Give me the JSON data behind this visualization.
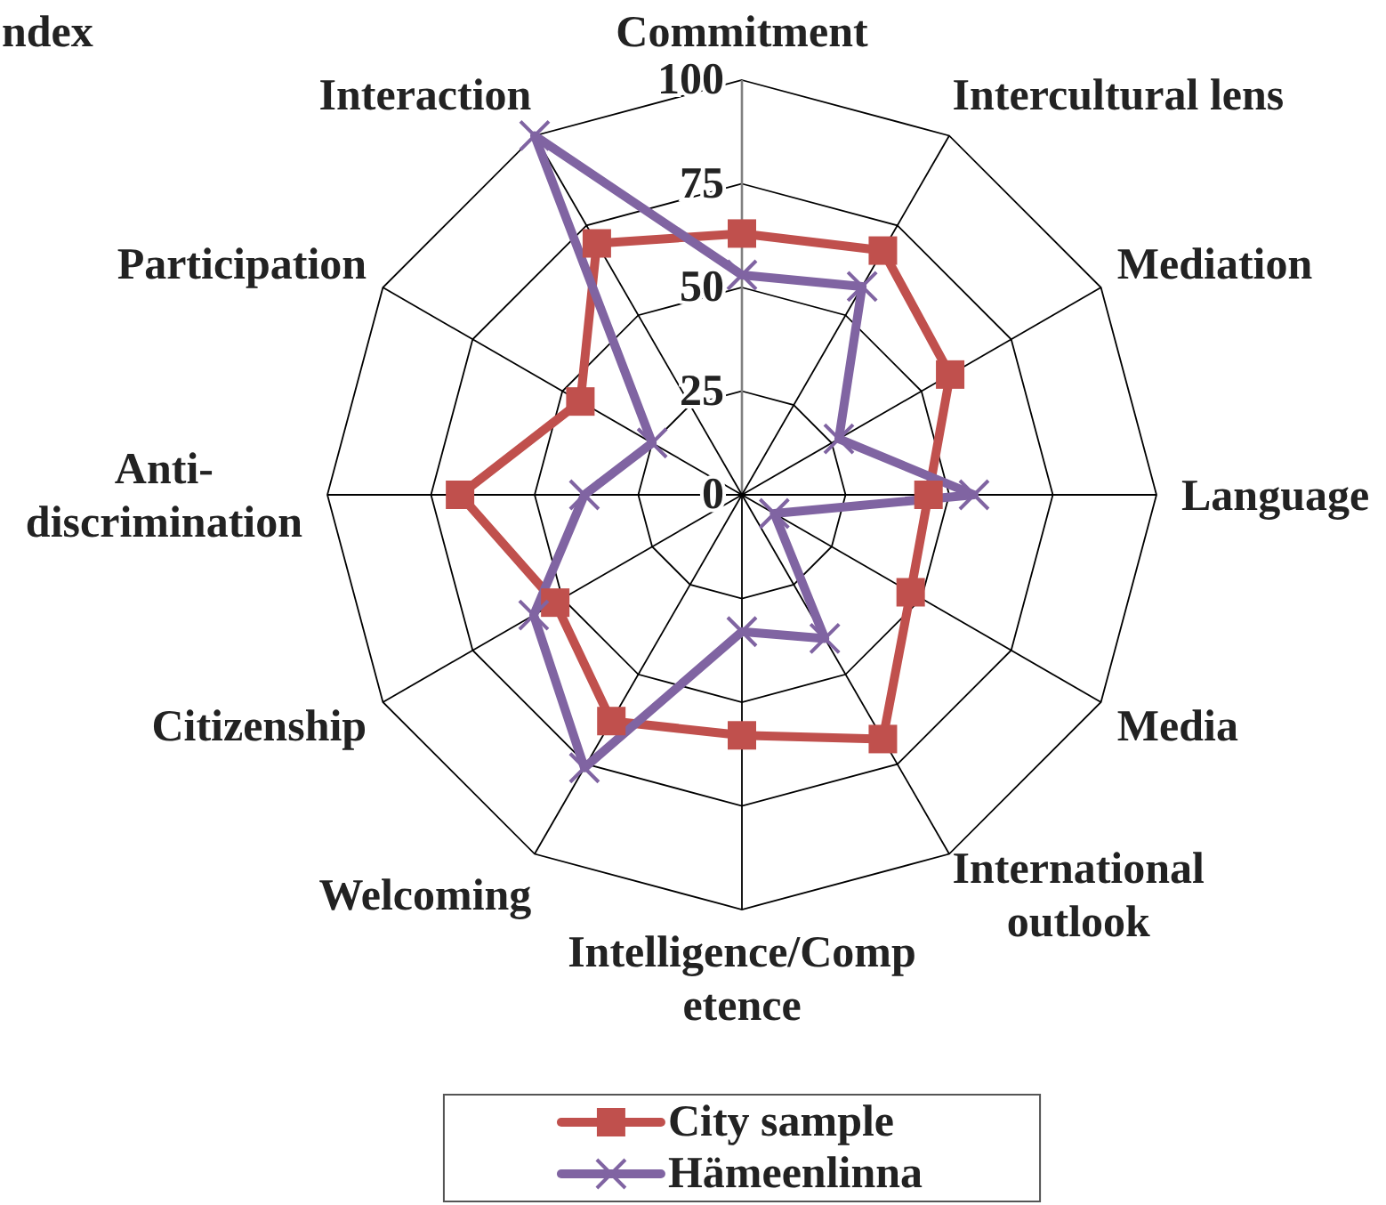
{
  "chart_data": {
    "type": "radar",
    "title": "ndex",
    "categories": [
      "Commitment",
      "Intercultural lens",
      "Mediation",
      "Language",
      "Media",
      "International outlook",
      "Intelligence/Competence",
      "Welcoming",
      "Citizenship",
      "Anti-discrimination",
      "Participation",
      "Interaction"
    ],
    "series": [
      {
        "name": "City sample",
        "color": "#c0504d",
        "marker": "square",
        "values": [
          63,
          68,
          58,
          45,
          47,
          68,
          58,
          63,
          52,
          68,
          45,
          70
        ]
      },
      {
        "name": "Hämeenlinna",
        "color": "#8064a2",
        "marker": "cross",
        "values": [
          53,
          58,
          27,
          56,
          9,
          40,
          33,
          76,
          58,
          38,
          25,
          100
        ]
      }
    ],
    "ylim": [
      0,
      100
    ],
    "yticks": [
      0,
      25,
      50,
      75,
      100
    ],
    "grid": true,
    "legend": "bottom"
  }
}
